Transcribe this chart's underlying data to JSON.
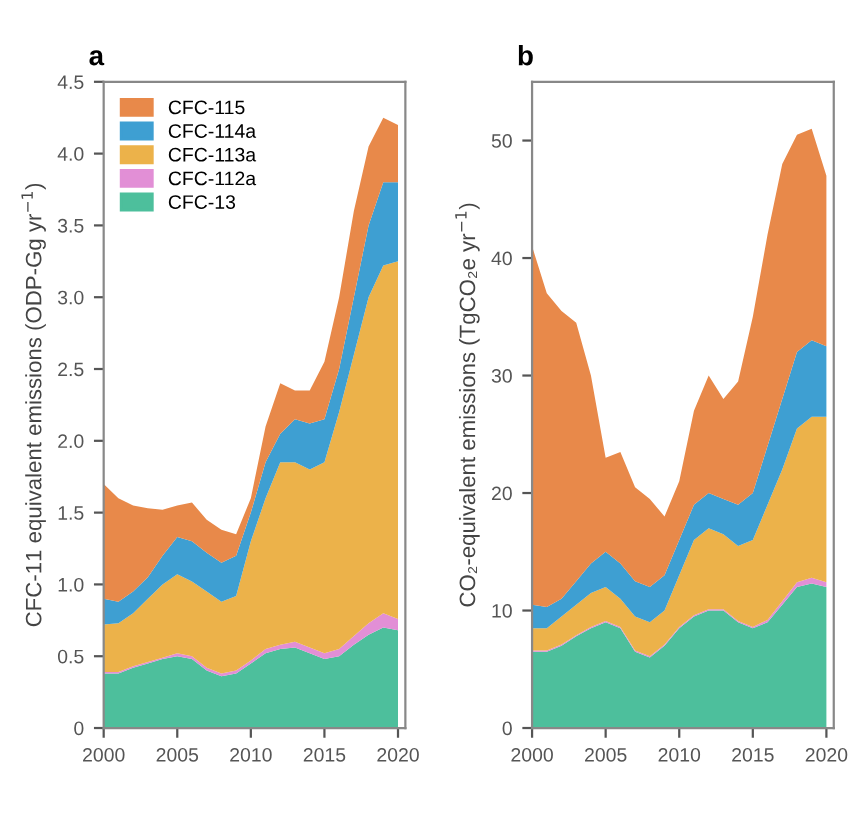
{
  "chart_data": [
    {
      "type": "area",
      "title": "a",
      "stacked": true,
      "ylabel": "CFC-11 equivalent emissions (ODP-Gg yr$^{−1}$)",
      "x": [
        2000,
        2001,
        2002,
        2003,
        2004,
        2005,
        2006,
        2007,
        2008,
        2009,
        2010,
        2011,
        2012,
        2013,
        2014,
        2015,
        2016,
        2017,
        2018,
        2019,
        2020
      ],
      "xlim": [
        2000,
        2020.5
      ],
      "xticks": [
        2000,
        2005,
        2010,
        2015,
        2020
      ],
      "ylim": [
        0,
        4.5
      ],
      "yticks": [
        0,
        0.5,
        {
          "value": 1,
          "label": "1.0"
        },
        1.5,
        {
          "value": 2,
          "label": "2.0"
        },
        2.5,
        {
          "value": 3,
          "label": "3.0"
        },
        3.5,
        {
          "value": 4,
          "label": "4.0"
        },
        4.5
      ],
      "grid": false,
      "legend": "top left",
      "series": [
        {
          "name": "CFC-13",
          "color": "#4dbf9c",
          "values": [
            0.38,
            0.38,
            0.42,
            0.45,
            0.48,
            0.5,
            0.48,
            0.4,
            0.36,
            0.38,
            0.45,
            0.52,
            0.55,
            0.56,
            0.52,
            0.48,
            0.5,
            0.58,
            0.65,
            0.7,
            0.68
          ]
        },
        {
          "name": "CFC-112a",
          "color": "#e28fd6",
          "values": [
            0.01,
            0.01,
            0.01,
            0.01,
            0.01,
            0.02,
            0.02,
            0.02,
            0.02,
            0.02,
            0.02,
            0.03,
            0.03,
            0.04,
            0.04,
            0.04,
            0.05,
            0.06,
            0.08,
            0.1,
            0.08
          ]
        },
        {
          "name": "CFC-113a",
          "color": "#ecb24a",
          "values": [
            0.33,
            0.34,
            0.37,
            0.44,
            0.51,
            0.55,
            0.52,
            0.53,
            0.5,
            0.52,
            0.83,
            1.05,
            1.27,
            1.25,
            1.24,
            1.33,
            1.65,
            1.96,
            2.27,
            2.42,
            2.49
          ]
        },
        {
          "name": "CFC-114a",
          "color": "#3e9fd2",
          "values": [
            0.18,
            0.15,
            0.15,
            0.15,
            0.2,
            0.26,
            0.28,
            0.27,
            0.27,
            0.28,
            0.2,
            0.25,
            0.2,
            0.3,
            0.32,
            0.3,
            0.3,
            0.4,
            0.5,
            0.58,
            0.55
          ]
        },
        {
          "name": "CFC-115",
          "color": "#e8894a",
          "values": [
            0.8,
            0.72,
            0.6,
            0.48,
            0.32,
            0.22,
            0.27,
            0.23,
            0.23,
            0.15,
            0.1,
            0.25,
            0.35,
            0.2,
            0.23,
            0.4,
            0.5,
            0.6,
            0.55,
            0.45,
            0.4
          ]
        }
      ]
    },
    {
      "type": "area",
      "title": "b",
      "stacked": true,
      "ylabel": "CO₂-equivalent emissions (TgCO₂e yr$^{−1}$)",
      "x": [
        2000,
        2001,
        2002,
        2003,
        2004,
        2005,
        2006,
        2007,
        2008,
        2009,
        2010,
        2011,
        2012,
        2013,
        2014,
        2015,
        2016,
        2017,
        2018,
        2019,
        2020
      ],
      "xlim": [
        2000,
        2020.5
      ],
      "xticks": [
        2000,
        2005,
        2010,
        2015,
        2020
      ],
      "ylim": [
        0,
        55
      ],
      "yticks": [
        0,
        10,
        20,
        30,
        40,
        50
      ],
      "grid": false,
      "series": [
        {
          "color": "#4dbf9c",
          "values": [
            6.5,
            6.5,
            7,
            7.8,
            8.5,
            9,
            8.5,
            6.5,
            6,
            7,
            8.5,
            9.5,
            10,
            10,
            9,
            8.5,
            9,
            10.5,
            12,
            12.3,
            12
          ]
        },
        {
          "color": "#e28fd6",
          "values": [
            0.1,
            0.1,
            0.1,
            0.1,
            0.1,
            0.1,
            0.1,
            0.1,
            0.1,
            0.1,
            0.1,
            0.1,
            0.1,
            0.1,
            0.1,
            0.1,
            0.2,
            0.3,
            0.4,
            0.5,
            0.4
          ]
        },
        {
          "color": "#ecb24a",
          "values": [
            1.9,
            1.9,
            2.4,
            2.6,
            2.9,
            2.9,
            2.4,
            2.9,
            2.9,
            2.9,
            4.4,
            6.4,
            6.9,
            6.4,
            6.4,
            7.4,
            9.8,
            11.2,
            13.1,
            13.7,
            14.1
          ]
        },
        {
          "color": "#3e9fd2",
          "values": [
            2.0,
            1.8,
            1.5,
            2.0,
            2.5,
            3.0,
            3.0,
            3.0,
            3.0,
            3.0,
            3.0,
            3.0,
            3.0,
            3.0,
            3.5,
            4.0,
            5.0,
            6.0,
            6.5,
            6.5,
            6.0
          ]
        },
        {
          "color": "#e8894a",
          "values": [
            30.5,
            26.7,
            24.5,
            22,
            16,
            8,
            9.5,
            8,
            7.5,
            5,
            5,
            8,
            10,
            8.5,
            10.5,
            15,
            18,
            20,
            18.5,
            18,
            14.5
          ]
        }
      ]
    }
  ]
}
